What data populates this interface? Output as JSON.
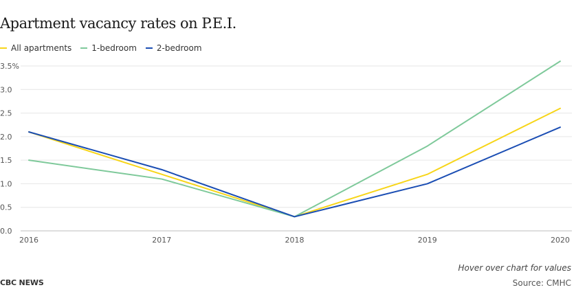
{
  "chart_data": {
    "type": "line",
    "title": "Apartment vacancy rates on P.E.I.",
    "x": [
      "2016",
      "2017",
      "2018",
      "2019",
      "2020"
    ],
    "series": [
      {
        "name": "All apartments",
        "color": "#f7d519",
        "values": [
          2.1,
          1.2,
          0.3,
          1.2,
          2.6
        ]
      },
      {
        "name": "1-bedroom",
        "color": "#7ec99a",
        "values": [
          1.5,
          1.1,
          0.3,
          1.8,
          3.6
        ]
      },
      {
        "name": "2-bedroom",
        "color": "#1a4db3",
        "values": [
          2.1,
          1.3,
          0.3,
          1.0,
          2.2
        ]
      }
    ],
    "y_ticks": [
      "0.0",
      "0.5",
      "1.0",
      "1.5",
      "2.0",
      "2.5",
      "3.0",
      "3.5%"
    ],
    "ylim": [
      0,
      3.5
    ],
    "grid": true,
    "legend_position": "top-left"
  },
  "footer": {
    "hover_hint": "Hover over chart for values",
    "logo": "CBC NEWS",
    "source": "Source: CMHC"
  }
}
